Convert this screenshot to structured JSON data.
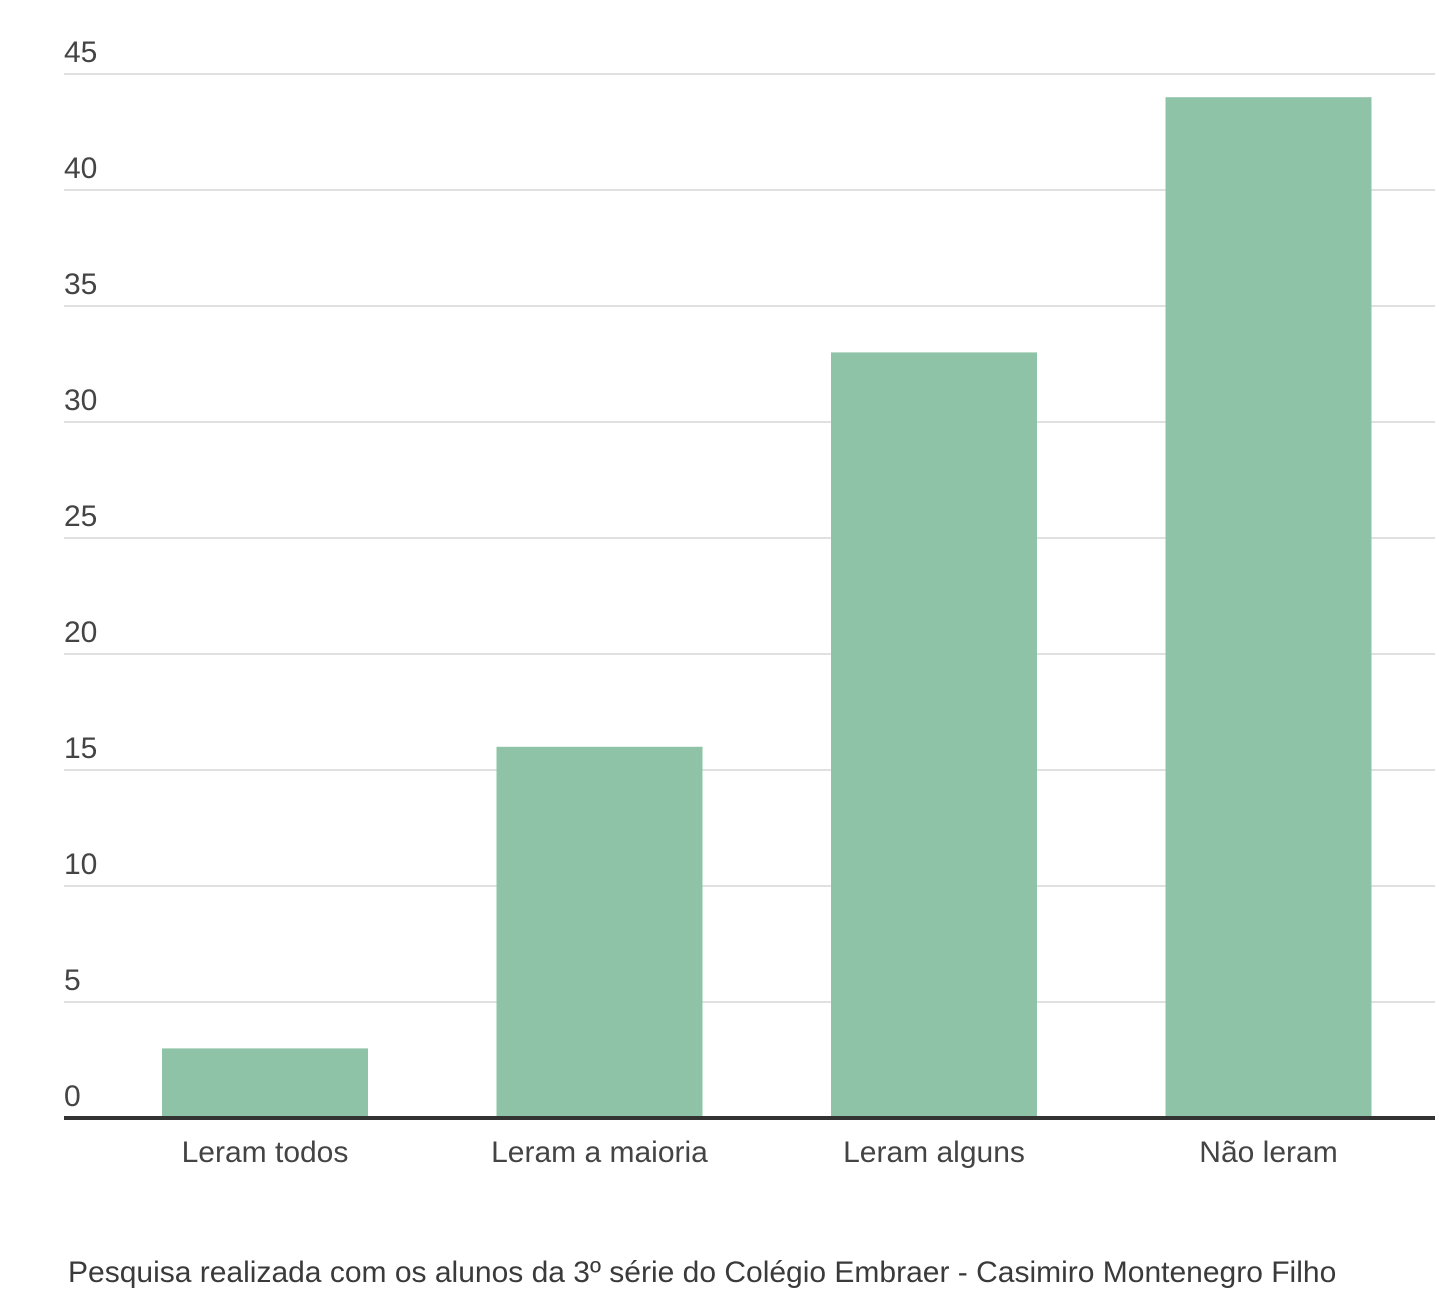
{
  "chart_data": {
    "type": "bar",
    "categories": [
      "Leram todos",
      "Leram a maioria",
      "Leram alguns",
      "Não leram"
    ],
    "values": [
      3,
      16,
      33,
      44
    ],
    "y_ticks": [
      0,
      5,
      10,
      15,
      20,
      25,
      30,
      35,
      40,
      45
    ],
    "ylim": [
      0,
      45
    ],
    "grid": true,
    "bar_color": "#8fc3a7",
    "caption": "Pesquisa realizada com os alunos da 3º série do Colégio Embraer - Casimiro Montenegro Filho"
  }
}
